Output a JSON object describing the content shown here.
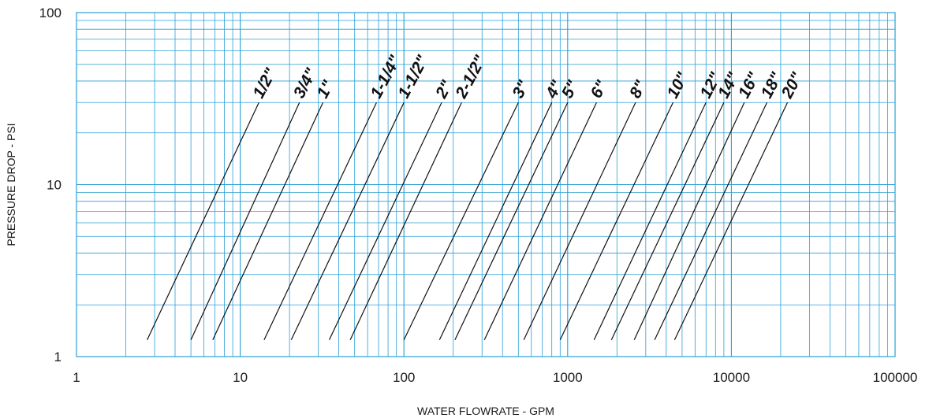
{
  "chart_data": {
    "type": "line",
    "xscale": "log",
    "yscale": "log",
    "xlim": [
      1,
      100000
    ],
    "ylim": [
      1,
      100
    ],
    "xlabel": "WATER FLOWRATE - GPM",
    "ylabel": "PRESSURE DROP - PSI",
    "xticks": [
      "1",
      "10",
      "100",
      "1000",
      "10000",
      "100000"
    ],
    "yticks": [
      "1",
      "10",
      "100"
    ],
    "grid": true,
    "grid_color": "#2a9fd6",
    "series": [
      {
        "name": "1/2\"",
        "x": [
          2.7,
          13
        ],
        "y": [
          1.25,
          30
        ]
      },
      {
        "name": "3/4\"",
        "x": [
          5,
          23
        ],
        "y": [
          1.25,
          30
        ]
      },
      {
        "name": "1\"",
        "x": [
          6.8,
          32
        ],
        "y": [
          1.25,
          30
        ]
      },
      {
        "name": "1-1/4\"",
        "x": [
          14,
          68
        ],
        "y": [
          1.25,
          30
        ]
      },
      {
        "name": "1-1/2\"",
        "x": [
          20.5,
          100
        ],
        "y": [
          1.25,
          30
        ]
      },
      {
        "name": "2\"",
        "x": [
          35,
          170
        ],
        "y": [
          1.25,
          30
        ]
      },
      {
        "name": "2-1/2\"",
        "x": [
          47,
          225
        ],
        "y": [
          1.25,
          30
        ]
      },
      {
        "name": "3\"",
        "x": [
          100,
          500
        ],
        "y": [
          1.25,
          30
        ]
      },
      {
        "name": "4\"",
        "x": [
          165,
          800
        ],
        "y": [
          1.25,
          30
        ]
      },
      {
        "name": "5\"",
        "x": [
          205,
          1000
        ],
        "y": [
          1.25,
          30
        ]
      },
      {
        "name": "6\"",
        "x": [
          310,
          1500
        ],
        "y": [
          1.25,
          30
        ]
      },
      {
        "name": "8\"",
        "x": [
          540,
          2600
        ],
        "y": [
          1.25,
          30
        ]
      },
      {
        "name": "10\"",
        "x": [
          900,
          4400
        ],
        "y": [
          1.25,
          30
        ]
      },
      {
        "name": "12\"",
        "x": [
          1450,
          7000
        ],
        "y": [
          1.25,
          30
        ]
      },
      {
        "name": "14\"",
        "x": [
          1850,
          9000
        ],
        "y": [
          1.25,
          30
        ]
      },
      {
        "name": "16\"",
        "x": [
          2550,
          12000
        ],
        "y": [
          1.25,
          30
        ]
      },
      {
        "name": "18\"",
        "x": [
          3400,
          16500
        ],
        "y": [
          1.25,
          30
        ]
      },
      {
        "name": "20\"",
        "x": [
          4500,
          22000
        ],
        "y": [
          1.25,
          30
        ]
      }
    ]
  }
}
